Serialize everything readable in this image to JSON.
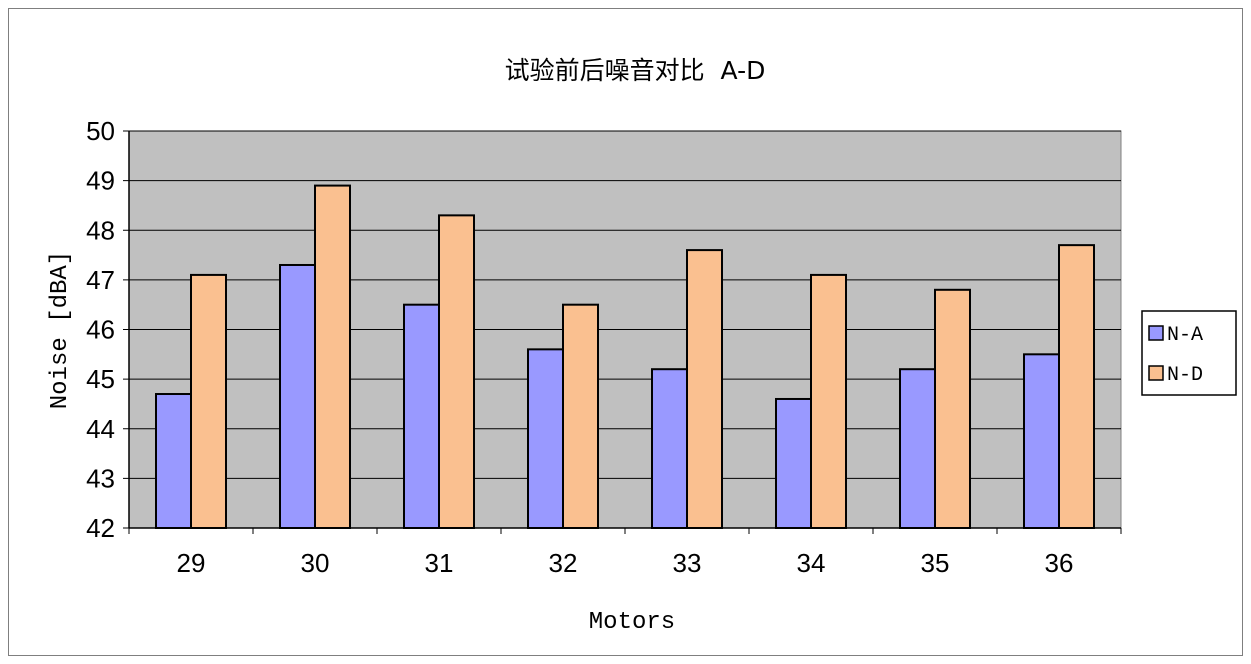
{
  "chart_data": {
    "type": "bar",
    "title": "试验前后噪音对比  A-D",
    "xlabel": "Motors",
    "ylabel": "Noise [dBA]",
    "categories": [
      "29",
      "30",
      "31",
      "32",
      "33",
      "34",
      "35",
      "36"
    ],
    "series": [
      {
        "name": "N-A",
        "color": "#9999ff",
        "values": [
          44.7,
          47.3,
          46.5,
          45.6,
          45.2,
          44.6,
          45.2,
          45.5
        ]
      },
      {
        "name": "N-D",
        "color": "#fac090",
        "values": [
          47.1,
          48.9,
          48.3,
          46.5,
          47.6,
          47.1,
          46.8,
          47.7
        ]
      }
    ],
    "ylim": [
      42,
      50
    ],
    "yticks": [
      "42",
      "43",
      "44",
      "45",
      "46",
      "47",
      "48",
      "49",
      "50"
    ],
    "grid": true,
    "plot_background": "#c0c0c0",
    "legend_position": "right"
  }
}
